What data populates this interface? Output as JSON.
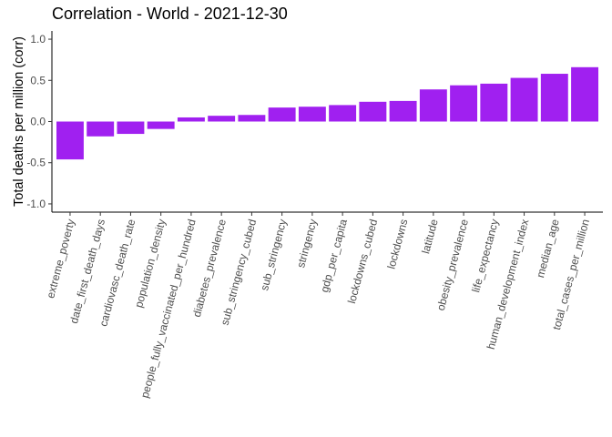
{
  "chart_data": {
    "type": "bar",
    "title": "Correlation - World - 2021-12-30",
    "xlabel": "",
    "ylabel": "Total deaths per million (corr)",
    "ylim": [
      -1.1,
      1.1
    ],
    "yticks": [
      -1.0,
      -0.5,
      0.0,
      0.5,
      1.0
    ],
    "ytick_labels": [
      "-1.0",
      "-0.5",
      "0.0",
      "0.5",
      "1.0"
    ],
    "grid": false,
    "legend": "none",
    "bar_color": "#A020F0",
    "categories": [
      "extreme_poverty",
      "date_first_death_days",
      "cardiovasc_death_rate",
      "population_density",
      "people_fully_vaccinated_per_hundred",
      "diabetes_prevalence",
      "sub_stringency_cubed",
      "sub_stringency",
      "stringency",
      "gdp_per_capita",
      "lockdowns_cubed",
      "lockdowns",
      "latitude",
      "obesity_prevalence",
      "life_expectancy",
      "human_development_index",
      "median_age",
      "total_cases_per_million"
    ],
    "values": [
      -0.46,
      -0.18,
      -0.15,
      -0.09,
      0.05,
      0.07,
      0.08,
      0.17,
      0.18,
      0.2,
      0.24,
      0.25,
      0.39,
      0.44,
      0.46,
      0.53,
      0.58,
      0.66
    ]
  }
}
